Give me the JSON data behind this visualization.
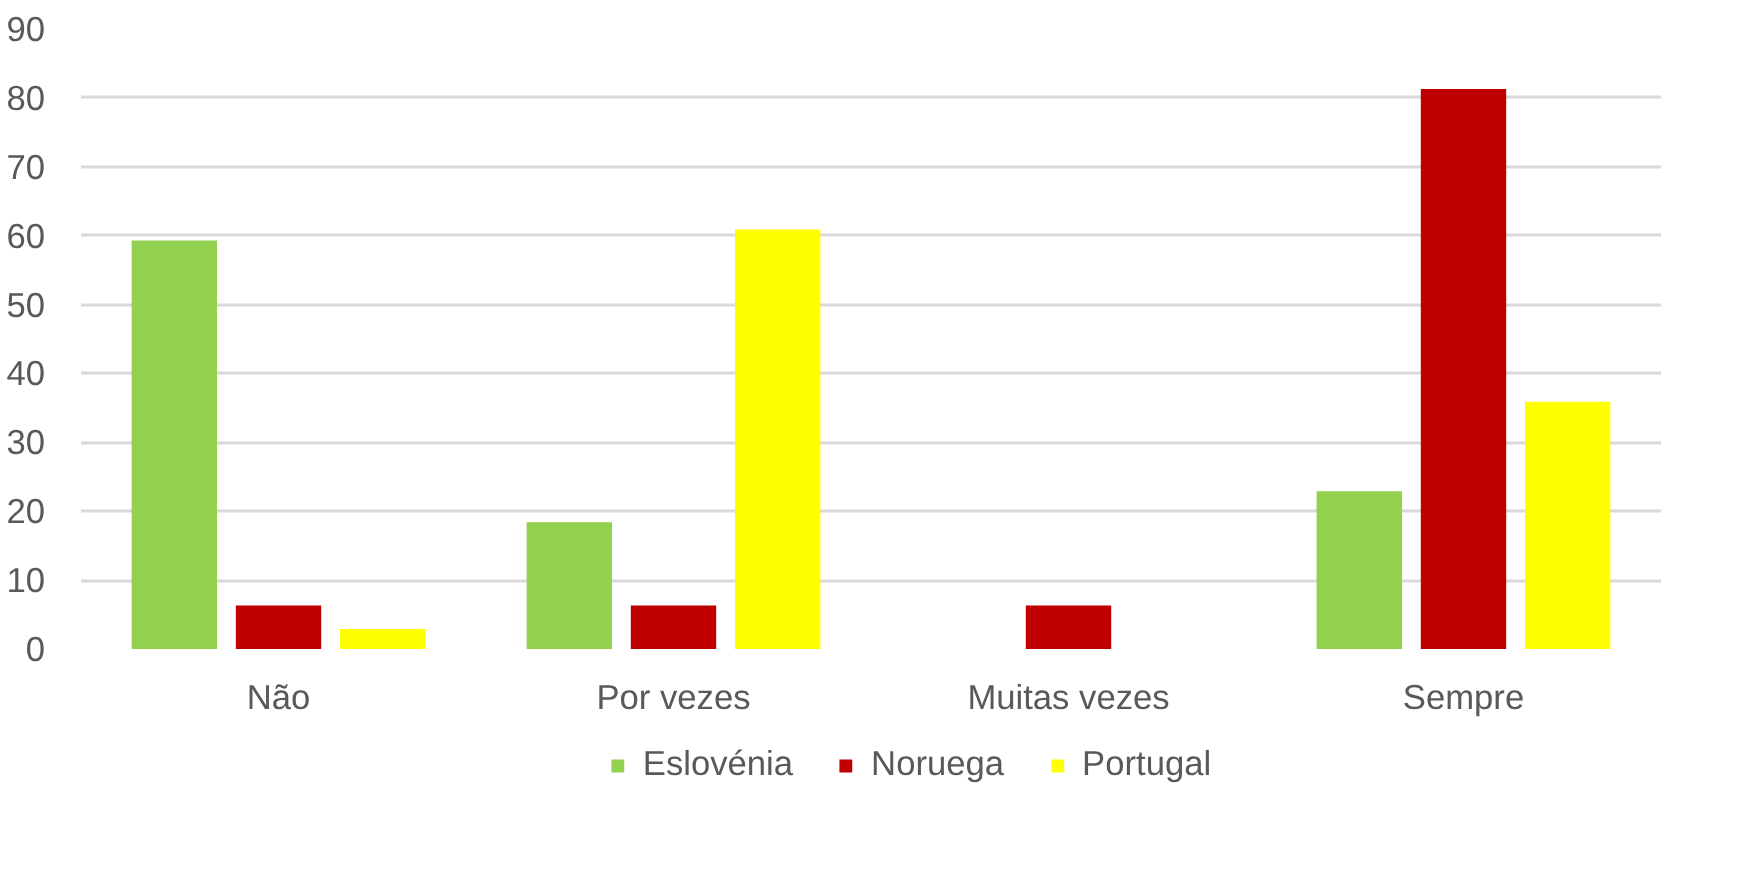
{
  "chart_data": {
    "type": "bar",
    "categories": [
      "Não",
      "Por vezes",
      "Muitas vezes",
      "Sempre"
    ],
    "series": [
      {
        "name": "Eslovénia",
        "color": "#92d050",
        "values": [
          59.3,
          18.4,
          0,
          22.9
        ]
      },
      {
        "name": "Noruega",
        "color": "#c00000",
        "values": [
          6.3,
          6.3,
          6.3,
          81.3
        ]
      },
      {
        "name": "Portugal",
        "color": "#ffff00",
        "values": [
          2.9,
          60.9,
          0,
          35.9
        ]
      }
    ],
    "ylim": [
      0,
      90
    ],
    "yticks": [
      0,
      10,
      20,
      30,
      40,
      50,
      60,
      70,
      80,
      90
    ],
    "grid": "y",
    "legend": "bottom"
  }
}
